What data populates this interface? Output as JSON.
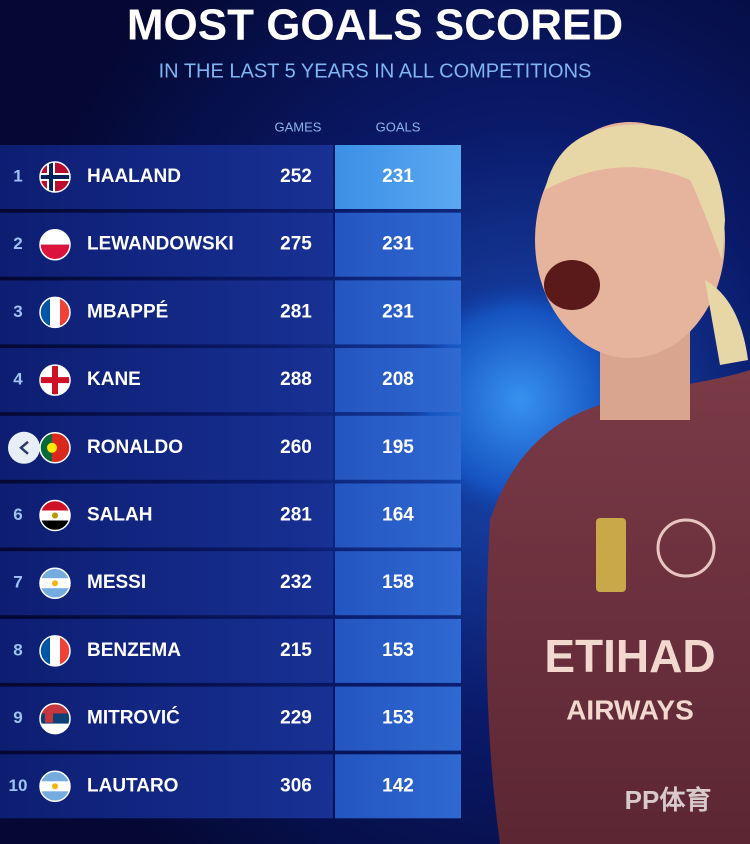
{
  "header": {
    "title": "MOST GOALS SCORED",
    "subtitle": "IN THE LAST 5 YEARS IN ALL COMPETITIONS"
  },
  "table": {
    "columns": [
      "GAMES",
      "GOALS"
    ],
    "rows": [
      {
        "rank": 1,
        "name": "HAALAND",
        "games": 252,
        "goals": 231
      },
      {
        "rank": 2,
        "name": "LEWANDOWSKI",
        "games": 275,
        "goals": 231
      },
      {
        "rank": 3,
        "name": "MBAPPÉ",
        "games": 281,
        "goals": 231
      },
      {
        "rank": 4,
        "name": "KANE",
        "games": 288,
        "goals": 208
      },
      {
        "name": "RONALDO",
        "games": 260,
        "goals": 195
      },
      {
        "rank": 6,
        "name": "SALAH",
        "games": 281,
        "goals": 164
      },
      {
        "rank": 7,
        "name": "MESSI",
        "games": 232,
        "goals": 158
      },
      {
        "rank": 8,
        "name": "BENZEMA",
        "games": 215,
        "goals": 153
      },
      {
        "rank": 9,
        "name": "MITROVIĆ",
        "games": 229,
        "goals": 153
      },
      {
        "rank": 10,
        "name": "LAUTARO",
        "games": 306,
        "goals": 142
      }
    ]
  },
  "jersey": {
    "sponsor": "ETIHAD",
    "sponsor_line2": "AIRWAYS"
  },
  "watermark": "PP体育"
}
